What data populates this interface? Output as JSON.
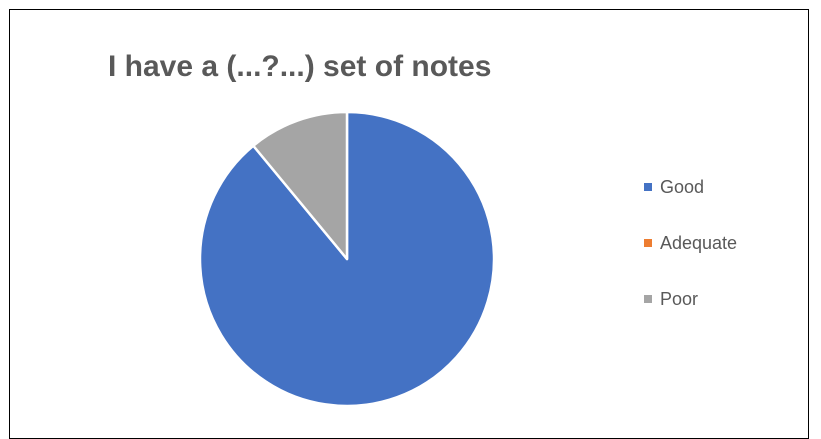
{
  "chart_data": {
    "type": "pie",
    "title": "I have a (...?...) set of notes",
    "categories": [
      "Good",
      "Adequate",
      "Poor"
    ],
    "values": [
      89,
      0,
      11
    ],
    "colors": [
      "#4472C4",
      "#ED7D31",
      "#A5A5A5"
    ],
    "legend_position": "right"
  }
}
